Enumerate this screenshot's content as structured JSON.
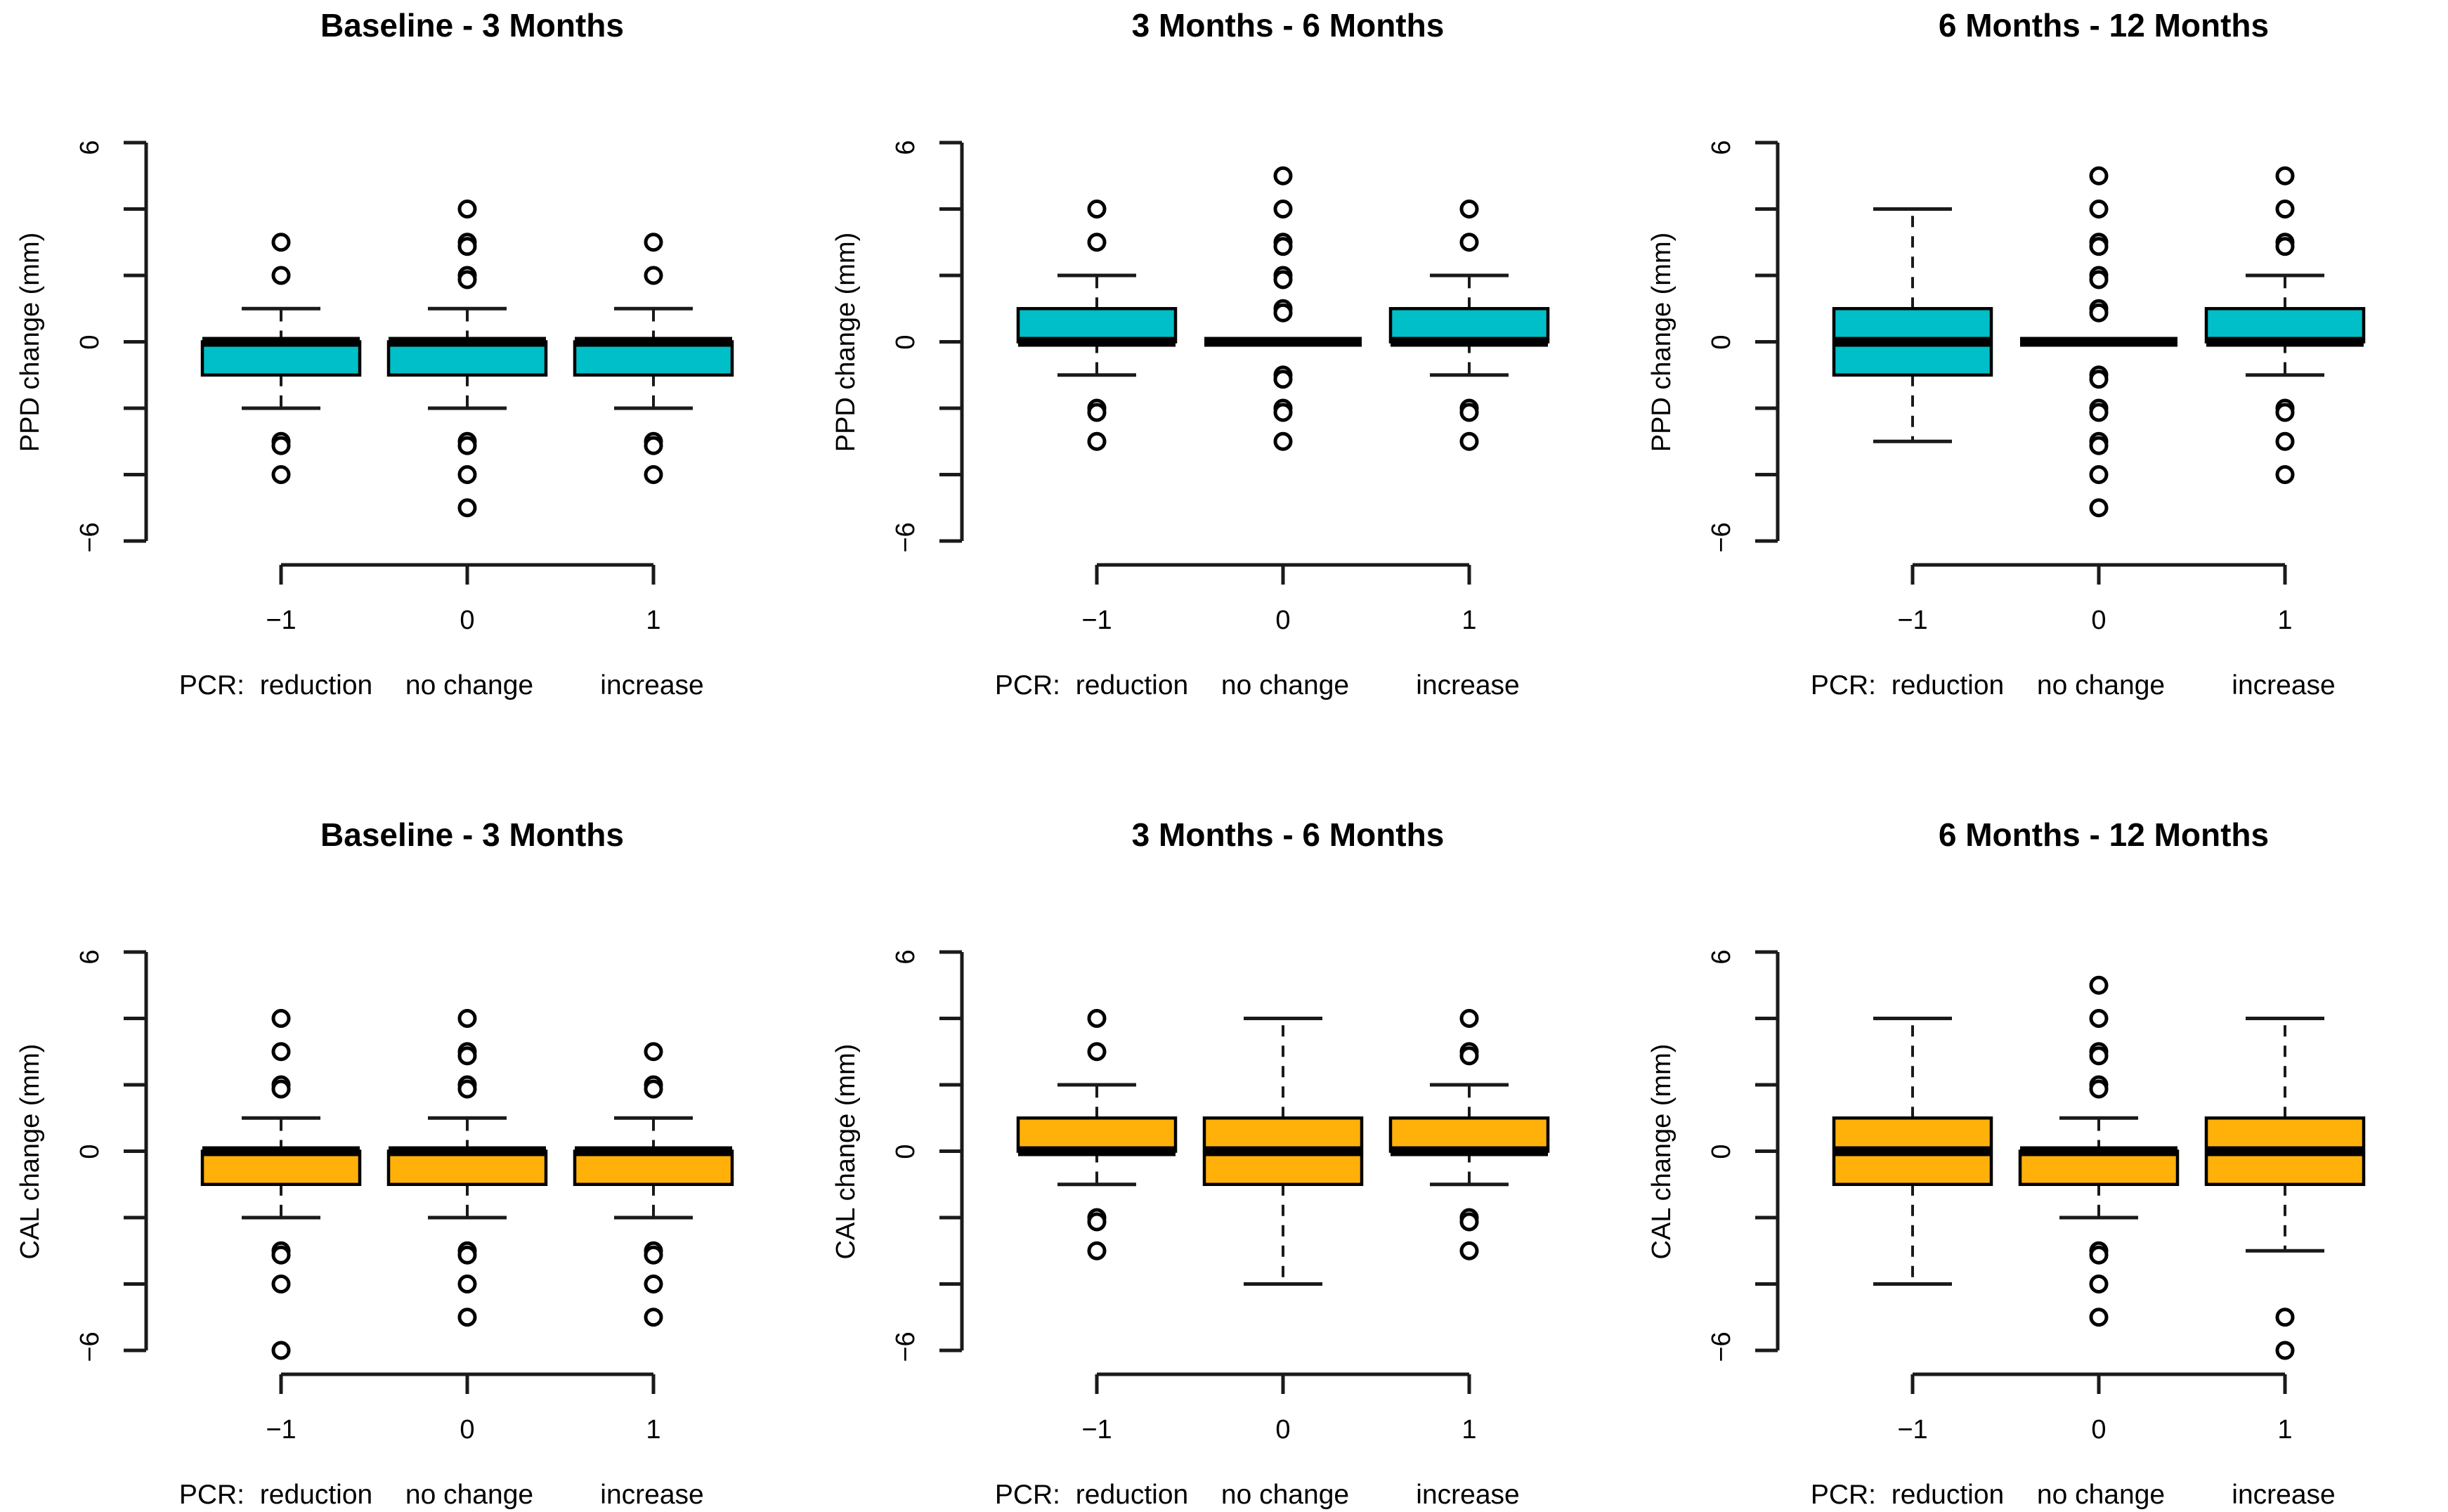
{
  "figure": {
    "background": "#ffffff",
    "axis_color": "#1a1a1a",
    "ppd_box_color": "#00BFC8",
    "cal_box_color": "#FFB10A"
  },
  "chart_data": [
    {
      "type": "boxplot",
      "title": "Baseline - 3 Months",
      "ylabel": "PPD change (mm)",
      "ylim": [
        -6,
        6
      ],
      "yticks": [
        -6,
        -4,
        -2,
        0,
        2,
        4,
        6
      ],
      "ytick_shown": [
        "6",
        "0",
        "−6"
      ],
      "x_caption_prefix": "PCR:",
      "box_color": "#00BFC8",
      "legend": "none",
      "grid": "off",
      "groups": [
        {
          "x": "−1",
          "label": "reduction",
          "q1": -1,
          "median": 0,
          "q3": 0,
          "whisker_low": -2,
          "whisker_high": 1,
          "outliers": [
            3,
            2,
            -3,
            -3,
            -4
          ]
        },
        {
          "x": "0",
          "label": "no change",
          "q1": -1,
          "median": 0,
          "q3": 0,
          "whisker_low": -2,
          "whisker_high": 1,
          "outliers": [
            4,
            3,
            3,
            2,
            2,
            -3,
            -3,
            -4,
            -5
          ]
        },
        {
          "x": "1",
          "label": "increase",
          "q1": -1,
          "median": 0,
          "q3": 0,
          "whisker_low": -2,
          "whisker_high": 1,
          "outliers": [
            3,
            2,
            -3,
            -3,
            -4
          ]
        }
      ]
    },
    {
      "type": "boxplot",
      "title": "3 Months - 6 Months",
      "ylabel": "PPD change (mm)",
      "ylim": [
        -6,
        6
      ],
      "yticks": [
        -6,
        -4,
        -2,
        0,
        2,
        4,
        6
      ],
      "ytick_shown": [
        "6",
        "0",
        "−6"
      ],
      "x_caption_prefix": "PCR:",
      "box_color": "#00BFC8",
      "legend": "none",
      "grid": "off",
      "groups": [
        {
          "x": "−1",
          "label": "reduction",
          "q1": 0,
          "median": 0,
          "q3": 1,
          "whisker_low": -1,
          "whisker_high": 2,
          "outliers": [
            4,
            3,
            -2,
            -2,
            -3
          ]
        },
        {
          "x": "0",
          "label": "no change",
          "q1": 0,
          "median": 0,
          "q3": 0,
          "whisker_low": 0,
          "whisker_high": 0,
          "outliers": [
            5,
            4,
            3,
            3,
            2,
            2,
            1,
            1,
            -1,
            -1,
            -2,
            -2,
            -3
          ]
        },
        {
          "x": "1",
          "label": "increase",
          "q1": 0,
          "median": 0,
          "q3": 1,
          "whisker_low": -1,
          "whisker_high": 2,
          "outliers": [
            4,
            3,
            -2,
            -2,
            -3
          ]
        }
      ]
    },
    {
      "type": "boxplot",
      "title": "6 Months - 12 Months",
      "ylabel": "PPD change (mm)",
      "ylim": [
        -6,
        6
      ],
      "yticks": [
        -6,
        -4,
        -2,
        0,
        2,
        4,
        6
      ],
      "ytick_shown": [
        "6",
        "0",
        "−6"
      ],
      "x_caption_prefix": "PCR:",
      "box_color": "#00BFC8",
      "legend": "none",
      "grid": "off",
      "groups": [
        {
          "x": "−1",
          "label": "reduction",
          "q1": -1,
          "median": 0,
          "q3": 1,
          "whisker_low": -3,
          "whisker_high": 4,
          "outliers": []
        },
        {
          "x": "0",
          "label": "no change",
          "q1": 0,
          "median": 0,
          "q3": 0,
          "whisker_low": 0,
          "whisker_high": 0,
          "outliers": [
            5,
            4,
            3,
            3,
            2,
            2,
            1,
            1,
            -1,
            -1,
            -2,
            -2,
            -3,
            -3,
            -4,
            -5
          ]
        },
        {
          "x": "1",
          "label": "increase",
          "q1": 0,
          "median": 0,
          "q3": 1,
          "whisker_low": -1,
          "whisker_high": 2,
          "outliers": [
            5,
            4,
            3,
            3,
            -2,
            -2,
            -3,
            -4
          ]
        }
      ]
    },
    {
      "type": "boxplot",
      "title": "Baseline - 3 Months",
      "ylabel": "CAL change (mm)",
      "ylim": [
        -6,
        6
      ],
      "yticks": [
        -6,
        -4,
        -2,
        0,
        2,
        4,
        6
      ],
      "ytick_shown": [
        "6",
        "0",
        "−6"
      ],
      "x_caption_prefix": "PCR:",
      "box_color": "#FFB10A",
      "legend": "none",
      "grid": "off",
      "groups": [
        {
          "x": "−1",
          "label": "reduction",
          "q1": -1,
          "median": 0,
          "q3": 0,
          "whisker_low": -2,
          "whisker_high": 1,
          "outliers": [
            4,
            3,
            2,
            2,
            -3,
            -3,
            -4,
            -6
          ]
        },
        {
          "x": "0",
          "label": "no change",
          "q1": -1,
          "median": 0,
          "q3": 0,
          "whisker_low": -2,
          "whisker_high": 1,
          "outliers": [
            4,
            3,
            3,
            2,
            2,
            -3,
            -3,
            -4,
            -5
          ]
        },
        {
          "x": "1",
          "label": "increase",
          "q1": -1,
          "median": 0,
          "q3": 0,
          "whisker_low": -2,
          "whisker_high": 1,
          "outliers": [
            3,
            2,
            2,
            -3,
            -3,
            -4,
            -5
          ]
        }
      ]
    },
    {
      "type": "boxplot",
      "title": "3 Months - 6 Months",
      "ylabel": "CAL change (mm)",
      "ylim": [
        -6,
        6
      ],
      "yticks": [
        -6,
        -4,
        -2,
        0,
        2,
        4,
        6
      ],
      "ytick_shown": [
        "6",
        "0",
        "−6"
      ],
      "x_caption_prefix": "PCR:",
      "box_color": "#FFB10A",
      "legend": "none",
      "grid": "off",
      "groups": [
        {
          "x": "−1",
          "label": "reduction",
          "q1": 0,
          "median": 0,
          "q3": 1,
          "whisker_low": -1,
          "whisker_high": 2,
          "outliers": [
            4,
            3,
            -2,
            -2,
            -3
          ]
        },
        {
          "x": "0",
          "label": "no change",
          "q1": -1,
          "median": 0,
          "q3": 1,
          "whisker_low": -4,
          "whisker_high": 4,
          "outliers": []
        },
        {
          "x": "1",
          "label": "increase",
          "q1": 0,
          "median": 0,
          "q3": 1,
          "whisker_low": -1,
          "whisker_high": 2,
          "outliers": [
            4,
            3,
            3,
            -2,
            -2,
            -3
          ]
        }
      ]
    },
    {
      "type": "boxplot",
      "title": "6 Months - 12 Months",
      "ylabel": "CAL change (mm)",
      "ylim": [
        -6,
        6
      ],
      "yticks": [
        -6,
        -4,
        -2,
        0,
        2,
        4,
        6
      ],
      "ytick_shown": [
        "6",
        "0",
        "−6"
      ],
      "x_caption_prefix": "PCR:",
      "box_color": "#FFB10A",
      "legend": "none",
      "grid": "off",
      "groups": [
        {
          "x": "−1",
          "label": "reduction",
          "q1": -1,
          "median": 0,
          "q3": 1,
          "whisker_low": -4,
          "whisker_high": 4,
          "outliers": []
        },
        {
          "x": "0",
          "label": "no change",
          "q1": -1,
          "median": 0,
          "q3": 0,
          "whisker_low": -2,
          "whisker_high": 1,
          "outliers": [
            5,
            4,
            3,
            3,
            2,
            2,
            -3,
            -3,
            -4,
            -5
          ]
        },
        {
          "x": "1",
          "label": "increase",
          "q1": -1,
          "median": 0,
          "q3": 1,
          "whisker_low": -3,
          "whisker_high": 4,
          "outliers": [
            -5,
            -6
          ]
        }
      ]
    }
  ]
}
